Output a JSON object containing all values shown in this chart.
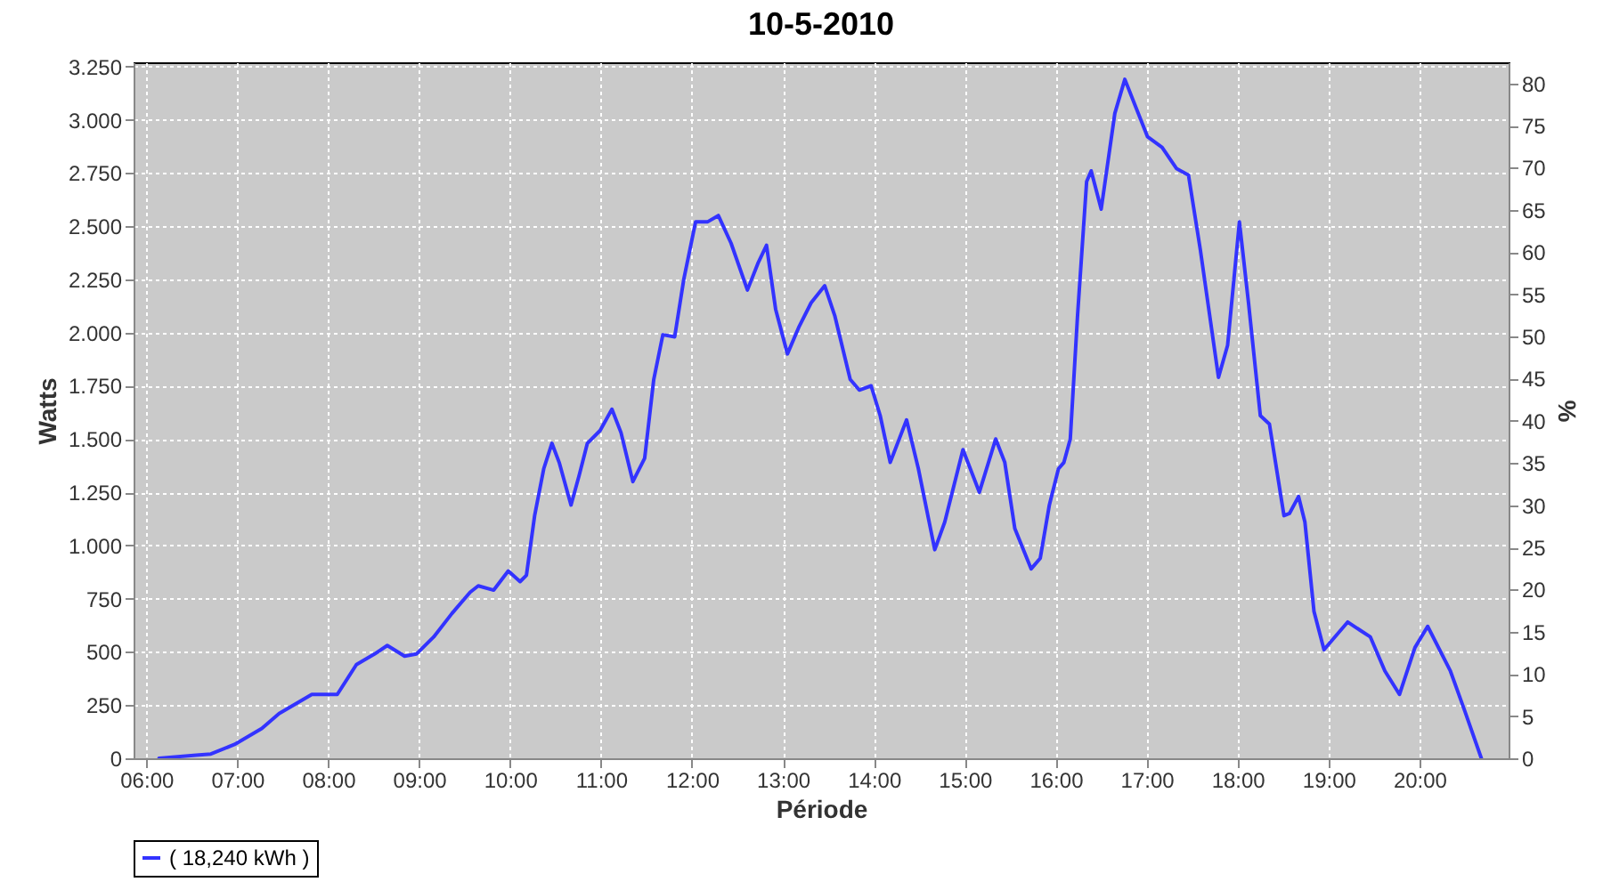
{
  "chart_data": {
    "type": "line",
    "title": "10-5-2010",
    "xlabel": "Période",
    "ylabel": "Watts",
    "y2label": "%",
    "x": [
      6.14,
      6.55,
      6.71,
      6.97,
      7.27,
      7.46,
      7.82,
      8.1,
      8.31,
      8.51,
      8.65,
      8.84,
      8.97,
      9.16,
      9.36,
      9.56,
      9.65,
      9.82,
      9.98,
      10.11,
      10.18,
      10.27,
      10.37,
      10.46,
      10.54,
      10.67,
      10.76,
      10.85,
      10.99,
      11.12,
      11.22,
      11.35,
      11.48,
      11.58,
      11.68,
      11.81,
      11.91,
      12.04,
      12.17,
      12.29,
      12.43,
      12.61,
      12.73,
      12.82,
      12.92,
      13.05,
      13.18,
      13.31,
      13.46,
      13.57,
      13.74,
      13.84,
      13.97,
      14.07,
      14.18,
      14.36,
      14.49,
      14.67,
      14.78,
      14.98,
      15.16,
      15.34,
      15.44,
      15.55,
      15.73,
      15.83,
      15.93,
      16.03,
      16.09,
      16.16,
      16.24,
      16.34,
      16.39,
      16.5,
      16.65,
      16.76,
      16.88,
      17.01,
      17.17,
      17.33,
      17.46,
      17.59,
      17.79,
      17.89,
      18.02,
      18.12,
      18.25,
      18.35,
      18.51,
      18.57,
      18.67,
      18.74,
      18.84,
      18.95,
      19.21,
      19.46,
      19.62,
      19.78,
      19.95,
      20.09,
      20.34,
      20.5,
      20.68
    ],
    "series": [
      {
        "name": "( 18,240 kWh )",
        "color": "#3333ff",
        "values": [
          0,
          15,
          20,
          65,
          140,
          210,
          300,
          300,
          440,
          490,
          530,
          480,
          490,
          570,
          680,
          780,
          810,
          790,
          880,
          830,
          860,
          1140,
          1360,
          1480,
          1390,
          1190,
          1330,
          1480,
          1540,
          1640,
          1530,
          1300,
          1410,
          1780,
          1990,
          1980,
          2250,
          2520,
          2520,
          2550,
          2420,
          2200,
          2330,
          2410,
          2110,
          1900,
          2030,
          2140,
          2220,
          2080,
          1780,
          1730,
          1750,
          1610,
          1390,
          1590,
          1360,
          980,
          1110,
          1450,
          1250,
          1500,
          1390,
          1080,
          890,
          940,
          1190,
          1360,
          1390,
          1500,
          2080,
          2710,
          2760,
          2580,
          3030,
          3190,
          3060,
          2920,
          2870,
          2770,
          2740,
          2390,
          1790,
          1940,
          2520,
          2140,
          1610,
          1570,
          1140,
          1150,
          1230,
          1110,
          690,
          510,
          640,
          570,
          410,
          300,
          520,
          620,
          410,
          220,
          0
        ]
      }
    ],
    "xlim": [
      5.86,
      20.98
    ],
    "xticks": [
      {
        "value": 6,
        "label": "06:00"
      },
      {
        "value": 7,
        "label": "07:00"
      },
      {
        "value": 8,
        "label": "08:00"
      },
      {
        "value": 9,
        "label": "09:00"
      },
      {
        "value": 10,
        "label": "10:00"
      },
      {
        "value": 11,
        "label": "11:00"
      },
      {
        "value": 12,
        "label": "12:00"
      },
      {
        "value": 13,
        "label": "13:00"
      },
      {
        "value": 14,
        "label": "14:00"
      },
      {
        "value": 15,
        "label": "15:00"
      },
      {
        "value": 16,
        "label": "16:00"
      },
      {
        "value": 17,
        "label": "17:00"
      },
      {
        "value": 18,
        "label": "18:00"
      },
      {
        "value": 19,
        "label": "19:00"
      },
      {
        "value": 20,
        "label": "20:00"
      }
    ],
    "ylim": [
      0,
      3270
    ],
    "yticks": [
      0,
      250,
      500,
      750,
      {
        "value": 1000,
        "label": "1.000"
      },
      {
        "value": 1250,
        "label": "1.250"
      },
      {
        "value": 1500,
        "label": "1.500"
      },
      {
        "value": 1750,
        "label": "1.750"
      },
      {
        "value": 2000,
        "label": "2.000"
      },
      {
        "value": 2250,
        "label": "2.250"
      },
      {
        "value": 2500,
        "label": "2.500"
      },
      {
        "value": 2750,
        "label": "2.750"
      },
      {
        "value": 3000,
        "label": "3.000"
      },
      {
        "value": 3250,
        "label": "3.250"
      }
    ],
    "y2lim": [
      0,
      82.5
    ],
    "y2ticks": [
      0,
      5,
      10,
      15,
      20,
      25,
      30,
      35,
      40,
      45,
      50,
      55,
      60,
      65,
      70,
      75,
      80
    ],
    "grid": true,
    "legend": "bottom",
    "marker": "none",
    "line_style": "solid"
  }
}
